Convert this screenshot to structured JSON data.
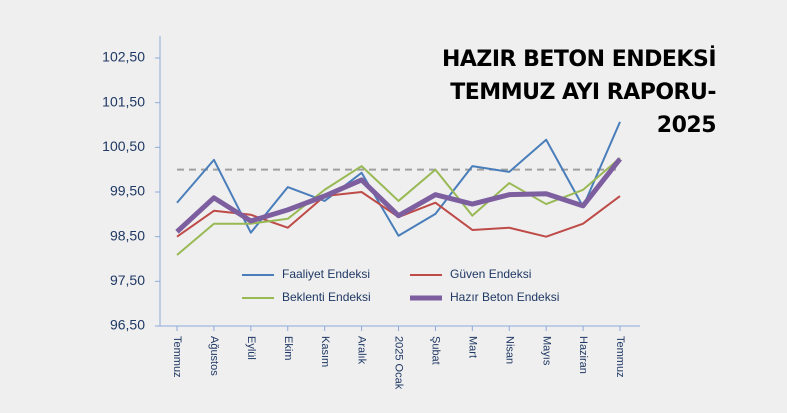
{
  "chart_data": {
    "type": "line",
    "title": [
      "HAZIR BETON ENDEKSİ",
      "TEMMUZ AYI RAPORU-",
      "2025"
    ],
    "categories": [
      "Temmuz",
      "Ağustos",
      "Eylül",
      "Ekim",
      "Kasım",
      "Aralık",
      "2025 Ocak",
      "Şubat",
      "Mart",
      "Nisan",
      "Mayıs",
      "Haziran",
      "Temmuz"
    ],
    "series": [
      {
        "name": "Faaliyet Endeksi",
        "color": "#4a7ebb",
        "values": [
          99.26,
          100.22,
          98.59,
          99.61,
          99.3,
          99.93,
          98.52,
          99.01,
          100.08,
          99.95,
          100.67,
          99.17,
          101.07
        ]
      },
      {
        "name": "Güven Endeksi",
        "color": "#be4b48",
        "values": [
          98.5,
          99.08,
          98.99,
          98.7,
          99.41,
          99.5,
          98.94,
          99.26,
          98.65,
          98.7,
          98.5,
          98.79,
          99.41
        ]
      },
      {
        "name": "Beklenti Endeksi",
        "color": "#98b954",
        "values": [
          98.09,
          98.79,
          98.79,
          98.9,
          99.55,
          100.08,
          99.3,
          100.0,
          98.97,
          99.7,
          99.23,
          99.55,
          100.26
        ]
      },
      {
        "name": "Hazır Beton Endeksi",
        "color": "#7d5fa0",
        "values": [
          98.61,
          99.37,
          98.85,
          99.1,
          99.41,
          99.77,
          98.97,
          99.44,
          99.23,
          99.44,
          99.46,
          99.19,
          100.24
        ]
      }
    ],
    "reference_line": 100,
    "ylim": [
      96.5,
      102.5
    ],
    "yticks": [
      {
        "value": 96.5,
        "label": "96,50"
      },
      {
        "value": 97.5,
        "label": "97,50"
      },
      {
        "value": 98.5,
        "label": "98,50"
      },
      {
        "value": 99.5,
        "label": "99,50"
      },
      {
        "value": 100.5,
        "label": "100,50"
      },
      {
        "value": 101.5,
        "label": "101,50"
      },
      {
        "value": 102.5,
        "label": "102,50"
      }
    ],
    "grid": false,
    "legend": "lower center"
  }
}
